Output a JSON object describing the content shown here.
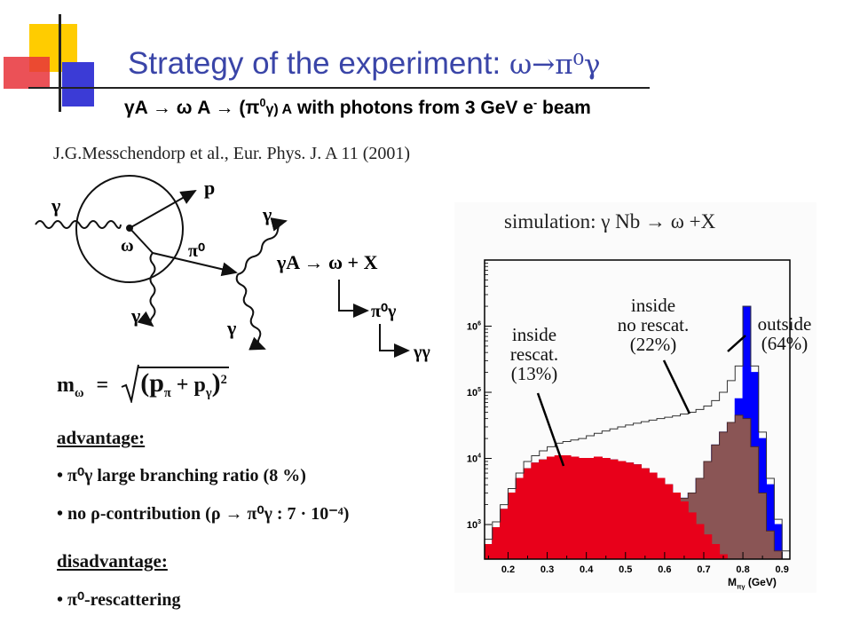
{
  "header": {
    "title_text": "Strategy of the experiment: ",
    "title_formula": "ω→π⁰γ",
    "subtitle_part1": "γA → ω A → (π",
    "subtitle_sup1": "0",
    "subtitle_part2": "γ) A",
    "subtitle_part3": " with photons  from  3 GeV  e",
    "subtitle_sup2": "-",
    "subtitle_part4": "  beam"
  },
  "reference": "J.G.Messchendorp et al., Eur. Phys. J. A 11 (2001)",
  "diagram": {
    "labels": {
      "gamma_in": "γ",
      "omega": "ω",
      "proton": "p",
      "pi0": "π⁰",
      "gamma_top_right": "γ",
      "gamma_bottom_left": "γ",
      "gamma_bottom_mid": "γ",
      "reaction": "γA → ω + X",
      "decay1": "π⁰γ",
      "decay2": "γγ"
    },
    "mass_formula": {
      "lhs": "m",
      "lhs_sub": "ω",
      "eq": "=",
      "inner": "(p",
      "p1_sub": "π",
      "plus": " + p",
      "p2_sub": "γ",
      "close": ")",
      "exp": "2"
    }
  },
  "advantages": {
    "heading": "advantage:",
    "items": [
      "• π⁰γ large branching ratio (8 %)",
      "• no ρ-contribution (ρ → π⁰γ : 7 · 10⁻⁴)"
    ]
  },
  "disadvantages": {
    "heading": "disadvantage:",
    "items": [
      "• π⁰-rescattering"
    ]
  },
  "simulation": {
    "title": "simulation:  γ Nb → ω +X",
    "annotations": {
      "inside_rescat": [
        "inside",
        "rescat.",
        "(13%)"
      ],
      "inside_no_rescat": [
        "inside",
        "no rescat.",
        "(22%)"
      ],
      "outside": [
        "outside",
        "(64%)"
      ]
    },
    "x_axis_label": "M",
    "x_axis_label_sub": "πγ",
    "x_axis_unit": " (GeV)",
    "colors": {
      "inside_rescat": "#e8001a",
      "inside_no_rescat": "#8a5555",
      "outside": "#0000ff",
      "total_outline": "#333333"
    }
  },
  "chart_data": {
    "type": "area",
    "title": "simulation:  γ Nb → ω +X",
    "xlabel": "Mπγ (GeV)",
    "ylabel": "",
    "y_scale": "log",
    "xlim": [
      0.14,
      0.92
    ],
    "ylim": [
      300,
      10000000
    ],
    "x_ticks": [
      "0.2",
      "0.3",
      "0.4",
      "0.5",
      "0.6",
      "0.7",
      "0.8",
      "0.9"
    ],
    "y_ticks": [
      {
        "base": "10",
        "exp": "3",
        "value": 1000
      },
      {
        "base": "10",
        "exp": "4",
        "value": 10000
      },
      {
        "base": "10",
        "exp": "5",
        "value": 100000
      },
      {
        "base": "10",
        "exp": "6",
        "value": 1000000
      }
    ],
    "series": [
      {
        "name": "inside rescat. (13%)",
        "x": [
          0.15,
          0.17,
          0.19,
          0.21,
          0.23,
          0.25,
          0.27,
          0.29,
          0.31,
          0.33,
          0.35,
          0.37,
          0.39,
          0.41,
          0.43,
          0.45,
          0.47,
          0.49,
          0.51,
          0.53,
          0.55,
          0.57,
          0.59,
          0.61,
          0.63,
          0.65,
          0.67,
          0.69,
          0.71,
          0.73,
          0.75,
          0.77,
          0.79,
          0.81,
          0.83,
          0.85,
          0.87,
          0.89,
          0.91
        ],
        "y": [
          500,
          900,
          1700,
          3000,
          5000,
          7000,
          8500,
          9500,
          10500,
          11000,
          11000,
          10500,
          10000,
          10000,
          10500,
          10000,
          9500,
          9000,
          8500,
          8000,
          7000,
          6000,
          5000,
          4000,
          3000,
          2200,
          1500,
          1000,
          700,
          500,
          350,
          300,
          300,
          300,
          300,
          300,
          300,
          300,
          300
        ]
      },
      {
        "name": "inside no rescat. (22%)",
        "x": [
          0.15,
          0.17,
          0.19,
          0.21,
          0.23,
          0.25,
          0.27,
          0.29,
          0.31,
          0.33,
          0.35,
          0.37,
          0.39,
          0.41,
          0.43,
          0.45,
          0.47,
          0.49,
          0.51,
          0.53,
          0.55,
          0.57,
          0.59,
          0.61,
          0.63,
          0.65,
          0.67,
          0.69,
          0.71,
          0.73,
          0.75,
          0.77,
          0.79,
          0.81,
          0.83,
          0.85,
          0.87,
          0.89,
          0.91
        ],
        "y": [
          500,
          900,
          1700,
          3000,
          5000,
          7000,
          8500,
          9500,
          10500,
          11000,
          11000,
          10500,
          10000,
          10000,
          10500,
          10000,
          9500,
          9000,
          8500,
          8000,
          7000,
          6000,
          5000,
          4000,
          3000,
          2500,
          3000,
          5000,
          9000,
          16000,
          25000,
          35000,
          45000,
          40000,
          15000,
          3000,
          800,
          400,
          300
        ]
      },
      {
        "name": "outside (64%)",
        "x": [
          0.15,
          0.17,
          0.19,
          0.21,
          0.23,
          0.25,
          0.27,
          0.29,
          0.31,
          0.33,
          0.35,
          0.37,
          0.39,
          0.41,
          0.43,
          0.45,
          0.47,
          0.49,
          0.51,
          0.53,
          0.55,
          0.57,
          0.59,
          0.61,
          0.63,
          0.65,
          0.67,
          0.69,
          0.71,
          0.73,
          0.75,
          0.77,
          0.79,
          0.81,
          0.83,
          0.85,
          0.87,
          0.89,
          0.91
        ],
        "y": [
          500,
          900,
          1700,
          3000,
          5000,
          7000,
          8500,
          9500,
          10500,
          11000,
          11000,
          10500,
          10000,
          10000,
          10500,
          10000,
          9500,
          9000,
          8500,
          8000,
          7000,
          6000,
          5000,
          4000,
          3000,
          2500,
          3000,
          5000,
          9000,
          16000,
          25000,
          35000,
          80000,
          2000000,
          200000,
          20000,
          4000,
          1000,
          300
        ]
      },
      {
        "name": "total",
        "x": [
          0.15,
          0.17,
          0.19,
          0.21,
          0.23,
          0.25,
          0.27,
          0.29,
          0.31,
          0.33,
          0.35,
          0.37,
          0.39,
          0.41,
          0.43,
          0.45,
          0.47,
          0.49,
          0.51,
          0.53,
          0.55,
          0.57,
          0.59,
          0.61,
          0.63,
          0.65,
          0.67,
          0.69,
          0.71,
          0.73,
          0.75,
          0.77,
          0.79,
          0.81,
          0.83,
          0.85,
          0.87,
          0.89,
          0.91
        ],
        "y": [
          600,
          1100,
          2000,
          3500,
          6000,
          9000,
          11000,
          13000,
          15000,
          17000,
          18000,
          19000,
          20000,
          22000,
          24000,
          26000,
          28000,
          30000,
          32000,
          34000,
          36000,
          38000,
          40000,
          42000,
          44000,
          47000,
          50000,
          55000,
          62000,
          75000,
          100000,
          150000,
          250000,
          2000000,
          250000,
          25000,
          5000,
          1200,
          400
        ]
      }
    ]
  }
}
